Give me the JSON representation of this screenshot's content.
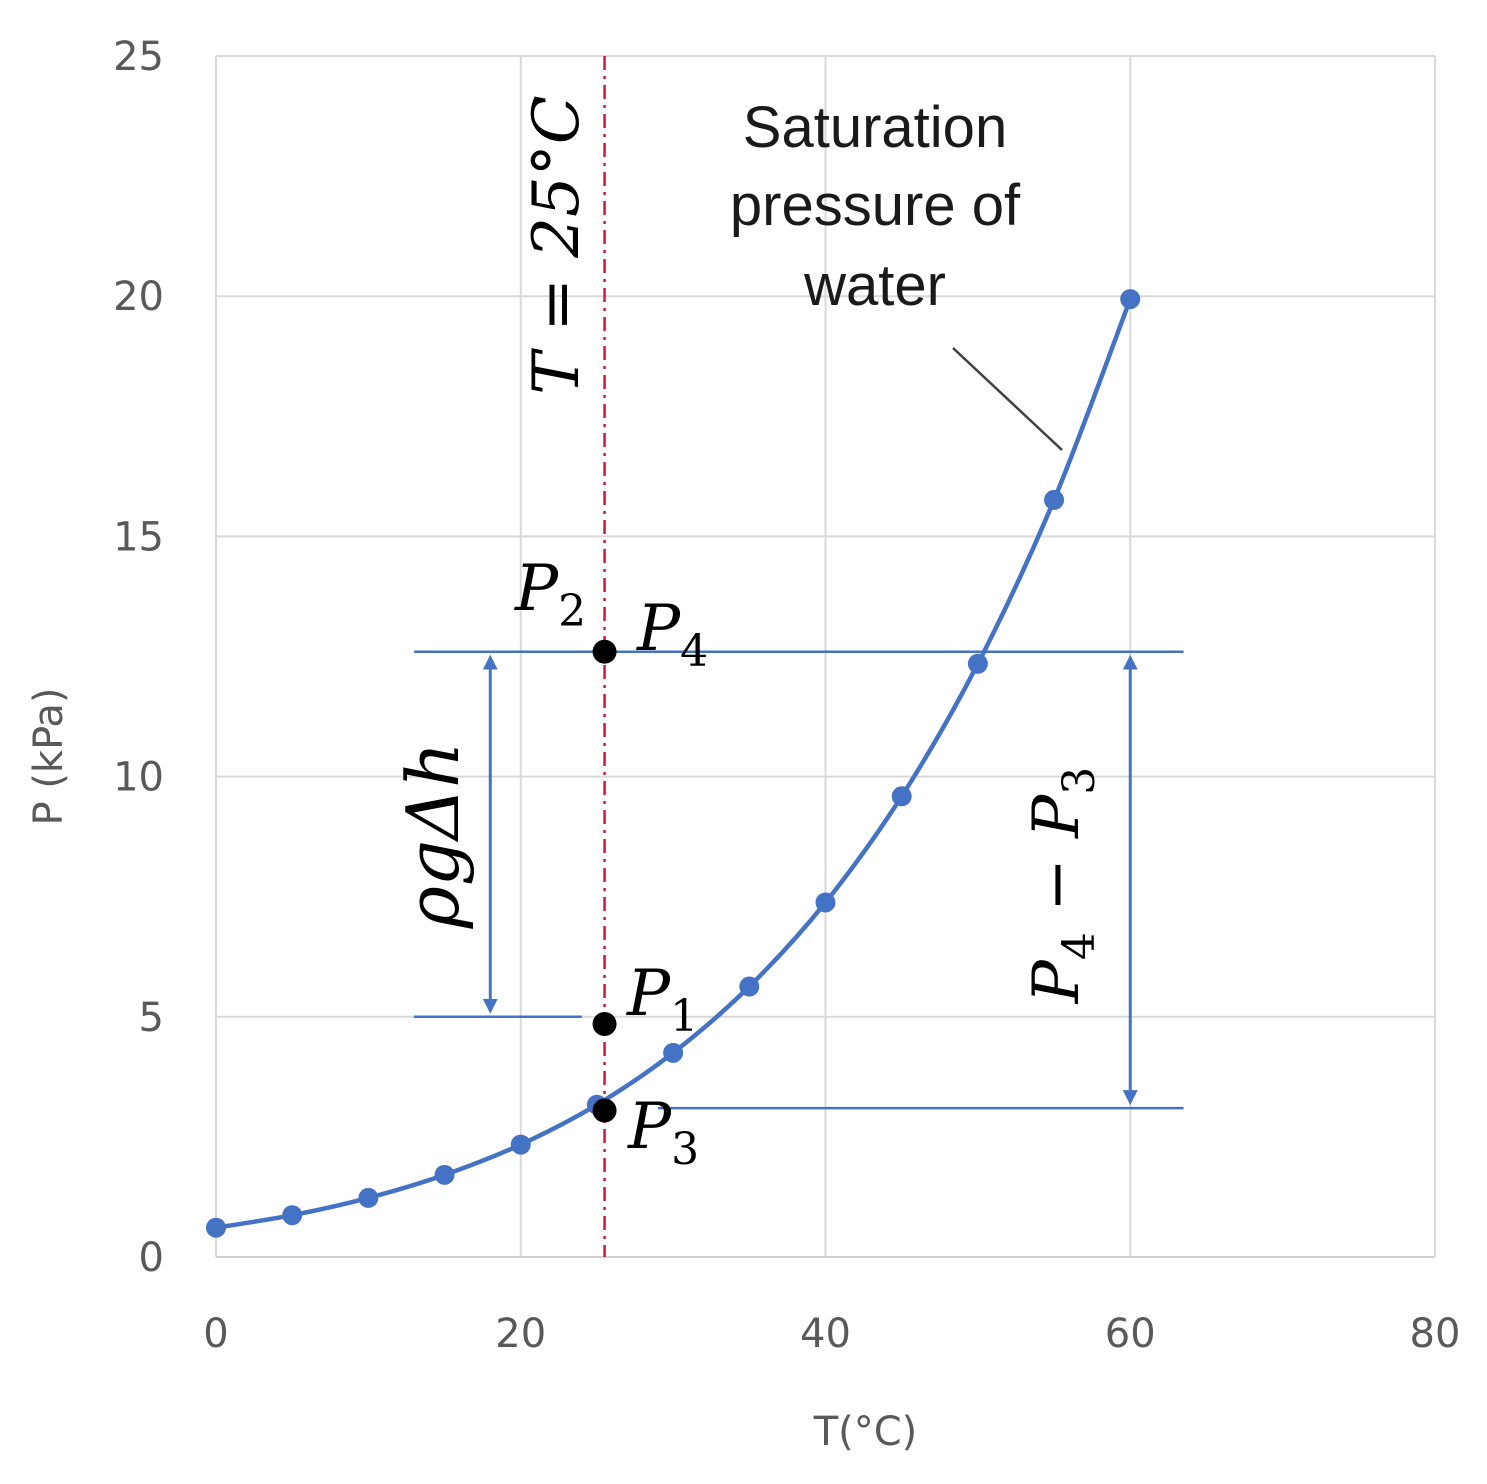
{
  "chart_data": {
    "type": "scatter",
    "title": "",
    "xlabel": "T(°C)",
    "ylabel": "P (kPa)",
    "xlim": [
      0,
      80
    ],
    "ylim": [
      0,
      25
    ],
    "x_ticks": [
      "0",
      "20",
      "40",
      "60",
      "80"
    ],
    "y_ticks": [
      "0",
      "5",
      "10",
      "15",
      "20",
      "25"
    ],
    "grid": true,
    "series": [
      {
        "name": "Saturation pressure of water",
        "x": [
          0,
          5,
          10,
          15,
          20,
          25,
          30,
          35,
          40,
          45,
          50,
          55,
          60
        ],
        "y": [
          0.61,
          0.87,
          1.23,
          1.71,
          2.34,
          3.17,
          4.25,
          5.63,
          7.38,
          9.59,
          12.35,
          15.76,
          19.94
        ]
      }
    ],
    "vertical_line": {
      "x": 25.5,
      "label_parts": [
        "T = 25°C"
      ]
    },
    "curve_annotation": [
      "Saturation",
      "pressure of",
      "water"
    ],
    "points": [
      {
        "name": "P4",
        "x": 25.5,
        "y": 12.6,
        "label": "P",
        "sub": "4"
      },
      {
        "name": "P1",
        "x": 25.5,
        "y": 4.85,
        "label": "P",
        "sub": "1"
      },
      {
        "name": "P3",
        "x": 25.5,
        "y": 3.05,
        "label": "P",
        "sub": "3"
      }
    ],
    "point_label_p2": {
      "label": "P",
      "sub": "2"
    },
    "rho_g_dh_label": "ρgΔh",
    "p4_minus_p3_label": [
      "P",
      "4",
      " − ",
      "P",
      "3"
    ],
    "hlines": [
      {
        "name": "P4-line",
        "y": 12.6,
        "x_from": 13,
        "x_to": 63.5
      },
      {
        "name": "P1-line",
        "y": 5.0,
        "x_from": 13,
        "x_to": 24
      },
      {
        "name": "P3-line",
        "y": 3.1,
        "x_from": 29,
        "x_to": 63.5
      }
    ],
    "colors": {
      "series": "#4472c4",
      "grid": "#d9d9d9",
      "vertical_line": "#d1183a",
      "marker_point": "#000000"
    }
  }
}
